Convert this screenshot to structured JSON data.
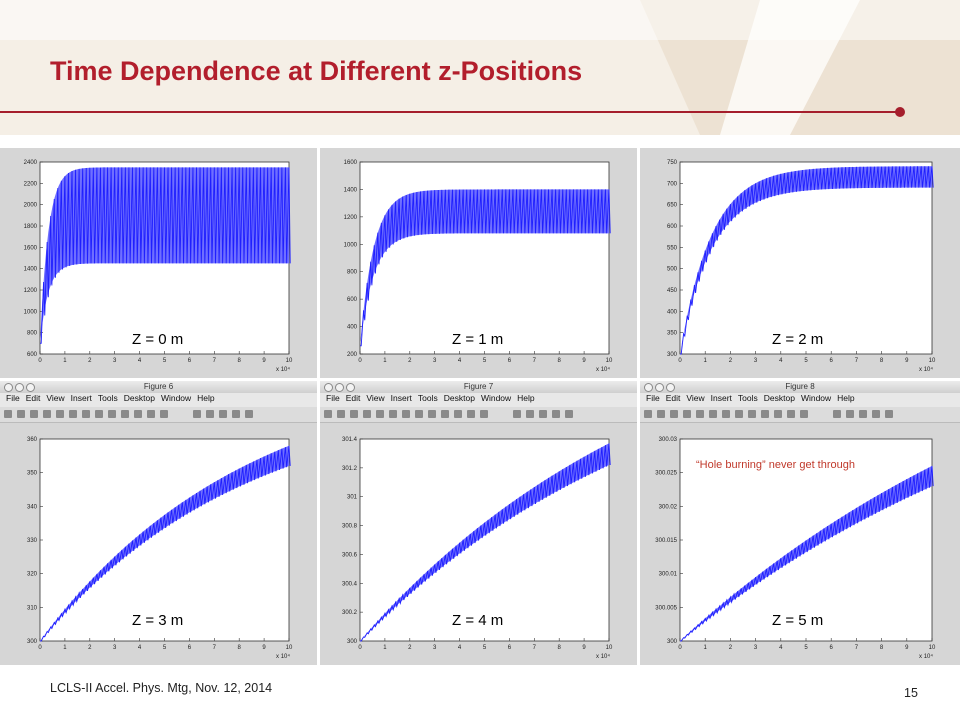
{
  "slide": {
    "title": "Time Dependence at Different z-Positions",
    "footer": "LCLS-II Accel. Phys. Mtg, Nov. 12, 2014",
    "page_number": "15",
    "accent_color": "#b21e2c",
    "annotation": "“Hole burning” never get through"
  },
  "windows": [
    {
      "title": "Figure 6",
      "menu": [
        "File",
        "Edit",
        "View",
        "Insert",
        "Tools",
        "Desktop",
        "Window",
        "Help"
      ]
    },
    {
      "title": "Figure 7",
      "menu": [
        "File",
        "Edit",
        "View",
        "Insert",
        "Tools",
        "Desktop",
        "Window",
        "Help"
      ]
    },
    {
      "title": "Figure 8",
      "menu": [
        "File",
        "Edit",
        "View",
        "Insert",
        "Tools",
        "Desktop",
        "Window",
        "Help"
      ]
    }
  ],
  "chart_data": [
    {
      "type": "area",
      "label": "Z = 0 m",
      "x_multiplier": "x 10⁴",
      "xticks": [
        "0",
        "1",
        "2",
        "3",
        "4",
        "5",
        "6",
        "7",
        "8",
        "9",
        "10"
      ],
      "yticks": [
        "600",
        "800",
        "1000",
        "1200",
        "1400",
        "1600",
        "1800",
        "2000",
        "2200",
        "2400"
      ],
      "ylim": [
        600,
        2400
      ],
      "xlim": [
        0,
        10
      ],
      "upper_start": 700,
      "upper_end": 2350,
      "lower_start": 700,
      "lower_end": 1450,
      "rate": 3.0,
      "color": "#1f1fff"
    },
    {
      "type": "area",
      "label": "Z = 1 m",
      "x_multiplier": "x 10⁴",
      "xticks": [
        "0",
        "1",
        "2",
        "3",
        "4",
        "5",
        "6",
        "7",
        "8",
        "9",
        "10"
      ],
      "yticks": [
        "200",
        "400",
        "600",
        "800",
        "1000",
        "1200",
        "1400",
        "1600"
      ],
      "ylim": [
        200,
        1600
      ],
      "xlim": [
        0,
        10
      ],
      "upper_start": 260,
      "upper_end": 1400,
      "lower_start": 260,
      "lower_end": 1080,
      "rate": 1.8,
      "color": "#1f1fff"
    },
    {
      "type": "area",
      "label": "Z = 2 m",
      "x_multiplier": "x 10⁴",
      "xticks": [
        "0",
        "1",
        "2",
        "3",
        "4",
        "5",
        "6",
        "7",
        "8",
        "9",
        "10"
      ],
      "yticks": [
        "300",
        "350",
        "400",
        "450",
        "500",
        "550",
        "600",
        "650",
        "700",
        "750"
      ],
      "ylim": [
        300,
        750
      ],
      "xlim": [
        0,
        10
      ],
      "upper_start": 300,
      "upper_end": 740,
      "lower_start": 300,
      "lower_end": 690,
      "rate": 0.8,
      "color": "#1f1fff"
    },
    {
      "type": "area",
      "label": "Z = 3 m",
      "x_multiplier": "x 10⁴",
      "xticks": [
        "0",
        "1",
        "2",
        "3",
        "4",
        "5",
        "6",
        "7",
        "8",
        "9",
        "10"
      ],
      "yticks": [
        "300",
        "310",
        "320",
        "330",
        "340",
        "350",
        "360"
      ],
      "ylim": [
        300,
        360
      ],
      "xlim": [
        0,
        10
      ],
      "upper_start": 300,
      "upper_end": 358,
      "lower_start": 300,
      "lower_end": 352,
      "rate": 0.12,
      "color": "#1f1fff"
    },
    {
      "type": "area",
      "label": "Z = 4 m",
      "x_multiplier": "x 10⁴",
      "xticks": [
        "0",
        "1",
        "2",
        "3",
        "4",
        "5",
        "6",
        "7",
        "8",
        "9",
        "10"
      ],
      "yticks": [
        "300",
        "300.2",
        "300.4",
        "300.6",
        "300.8",
        "301",
        "301.2",
        "301.4"
      ],
      "ylim": [
        300,
        301.4
      ],
      "xlim": [
        0,
        10
      ],
      "upper_start": 300,
      "upper_end": 301.37,
      "lower_start": 300,
      "lower_end": 301.22,
      "rate": 0.08,
      "color": "#1f1fff"
    },
    {
      "type": "area",
      "label": "Z = 5 m",
      "x_multiplier": "x 10⁴",
      "xticks": [
        "0",
        "1",
        "2",
        "3",
        "4",
        "5",
        "6",
        "7",
        "8",
        "9",
        "10"
      ],
      "yticks": [
        "300",
        "300.005",
        "300.01",
        "300.015",
        "300.02",
        "300.025",
        "300.03"
      ],
      "ylim": [
        300,
        300.03
      ],
      "xlim": [
        0,
        10
      ],
      "upper_start": 300,
      "upper_end": 300.026,
      "lower_start": 300,
      "lower_end": 300.023,
      "rate": 0.06,
      "color": "#1f1fff"
    }
  ]
}
